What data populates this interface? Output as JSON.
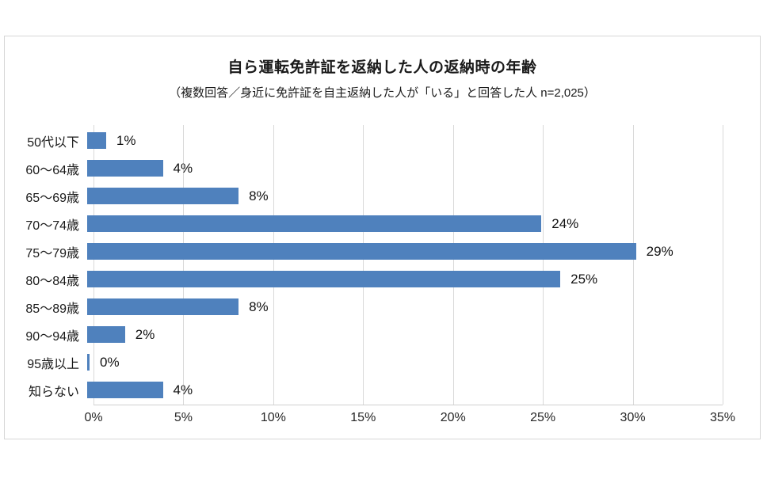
{
  "header": {
    "title": "自ら運転免許証を返納した人の返納時の年齢",
    "subtitle": "（複数回答／身近に免許証を自主返納した人が「いる」と回答した人 n=2,025）"
  },
  "chart_data": {
    "type": "bar",
    "orientation": "horizontal",
    "title": "自ら運転免許証を返納した人の返納時の年齢",
    "subtitle": "（複数回答／身近に免許証を自主返納した人が「いる」と回答した人 n=2,025）",
    "categories": [
      "50代以下",
      "60～64歳",
      "65～69歳",
      "70～74歳",
      "75～79歳",
      "80～84歳",
      "85～89歳",
      "90～94歳",
      "95歳以上",
      "知らない"
    ],
    "values": [
      1,
      4,
      8,
      24,
      29,
      25,
      8,
      2,
      0,
      4
    ],
    "data_labels": [
      "1%",
      "4%",
      "8%",
      "24%",
      "29%",
      "25%",
      "8%",
      "2%",
      "0%",
      "4%"
    ],
    "x_ticks": [
      "0%",
      "5%",
      "10%",
      "15%",
      "20%",
      "25%",
      "30%",
      "35%"
    ],
    "xlim": [
      0,
      35
    ],
    "xlabel": "",
    "ylabel": "",
    "grid": true,
    "legend": false,
    "bar_color": "#4F81BD",
    "gridline_color": "#D9D9D9",
    "axis_line_color": "#CFCFCF",
    "text_color": "#1A1A1A"
  }
}
